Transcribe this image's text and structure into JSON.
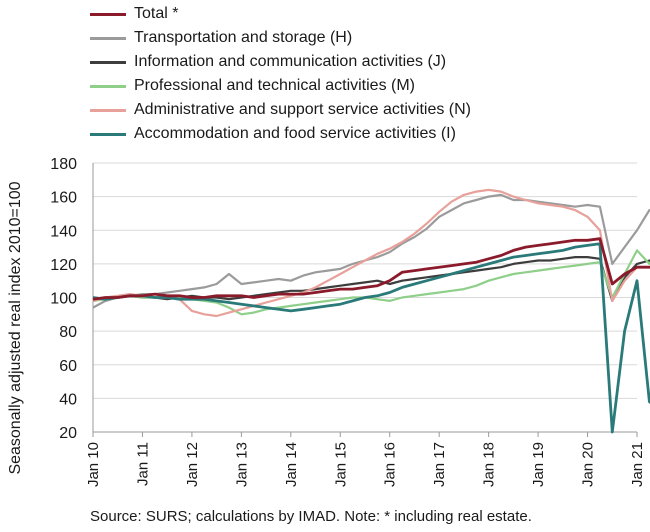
{
  "chart_data": {
    "type": "line",
    "title": "",
    "ylabel": "Seasonally adjusted real index 2010=100",
    "xlabel": "",
    "ylim": [
      20,
      180
    ],
    "yticks": [
      20,
      40,
      60,
      80,
      100,
      120,
      140,
      160,
      180
    ],
    "x_tick_labels": [
      "Jan 10",
      "Jan 11",
      "Jan 12",
      "Jan 13",
      "Jan 14",
      "Jan 15",
      "Jan 16",
      "Jan 17",
      "Jan 18",
      "Jan 19",
      "Jan 20",
      "Jan 21"
    ],
    "x_start": "2010-01",
    "x_step": "quarter",
    "grid": "horizontal",
    "legend_position": "top",
    "series": [
      {
        "name": "Total *",
        "color": "#8b1a2b",
        "values": [
          99,
          100,
          100,
          101,
          101,
          102,
          101,
          101,
          100,
          100,
          101,
          101,
          101,
          100,
          101,
          102,
          102,
          102,
          103,
          104,
          105,
          105,
          106,
          107,
          110,
          115,
          116,
          117,
          118,
          119,
          120,
          121,
          123,
          125,
          128,
          130,
          131,
          132,
          133,
          134,
          134,
          135,
          108,
          114,
          118,
          118,
          118
        ]
      },
      {
        "name": "Transportation and storage (H)",
        "color": "#9b9b9b",
        "values": [
          94,
          98,
          100,
          101,
          102,
          102,
          103,
          104,
          105,
          106,
          108,
          114,
          108,
          109,
          110,
          111,
          110,
          113,
          115,
          116,
          117,
          120,
          122,
          124,
          127,
          132,
          136,
          141,
          148,
          152,
          156,
          158,
          160,
          161,
          158,
          158,
          157,
          156,
          155,
          154,
          155,
          154,
          120,
          130,
          140,
          152,
          150
        ]
      },
      {
        "name": "Information and communication activities (J)",
        "color": "#3d3d3d",
        "values": [
          100,
          99,
          100,
          101,
          100,
          100,
          99,
          100,
          101,
          100,
          100,
          99,
          100,
          101,
          102,
          103,
          104,
          104,
          105,
          106,
          107,
          108,
          109,
          110,
          108,
          110,
          111,
          112,
          113,
          114,
          115,
          116,
          117,
          118,
          120,
          121,
          122,
          122,
          123,
          124,
          124,
          123,
          98,
          112,
          120,
          122,
          118
        ]
      },
      {
        "name": "Professional and technical activities (M)",
        "color": "#8fcf8a",
        "values": [
          98,
          99,
          100,
          101,
          100,
          100,
          101,
          100,
          99,
          98,
          97,
          94,
          90,
          91,
          93,
          94,
          95,
          96,
          97,
          98,
          99,
          100,
          100,
          99,
          98,
          100,
          101,
          102,
          103,
          104,
          105,
          107,
          110,
          112,
          114,
          115,
          116,
          117,
          118,
          119,
          120,
          121,
          100,
          114,
          128,
          120,
          128
        ]
      },
      {
        "name": "Administrative and support service activities (N)",
        "color": "#e8a09a",
        "values": [
          98,
          100,
          101,
          102,
          101,
          100,
          100,
          99,
          92,
          90,
          89,
          91,
          93,
          95,
          97,
          99,
          101,
          103,
          106,
          110,
          114,
          118,
          122,
          126,
          129,
          133,
          138,
          144,
          151,
          157,
          161,
          163,
          164,
          163,
          160,
          158,
          156,
          155,
          154,
          152,
          148,
          140,
          98,
          110,
          118,
          118,
          118
        ]
      },
      {
        "name": "Accommodation and food service activities (I)",
        "color": "#2b7a7a",
        "values": [
          100,
          99,
          100,
          101,
          101,
          100,
          100,
          99,
          99,
          99,
          98,
          97,
          96,
          95,
          94,
          93,
          92,
          93,
          94,
          95,
          96,
          98,
          100,
          101,
          103,
          106,
          108,
          110,
          112,
          114,
          116,
          118,
          120,
          122,
          124,
          125,
          126,
          127,
          128,
          130,
          131,
          132,
          20,
          80,
          110,
          38,
          32
        ]
      }
    ]
  },
  "footnote": "Source:  SURS; calculations by IMAD. Note: * including real estate."
}
